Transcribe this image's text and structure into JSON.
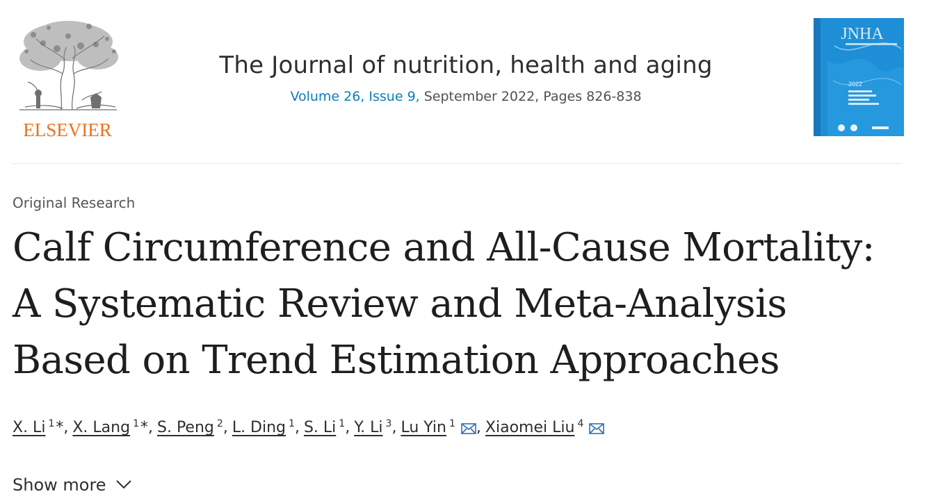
{
  "header": {
    "publisher": "ELSEVIER",
    "journal_title": "The Journal of nutrition, health and aging",
    "issue_volume": "Volume 26, Issue 9,",
    "issue_rest": " September 2022, Pages 826-838",
    "cover_title": "JNHA",
    "cover_year": "2022"
  },
  "article": {
    "type": "Original Research",
    "title_lines": [
      "Calf Circumference and All-Cause Mortality:",
      "A Systematic Review and Meta-Analysis",
      "Based on Trend Estimation Approaches"
    ]
  },
  "authors": [
    {
      "name": "X. Li",
      "aff": "1",
      "star": "*",
      "mail": false
    },
    {
      "name": "X. Lang",
      "aff": "1",
      "star": "*",
      "mail": false
    },
    {
      "name": "S. Peng",
      "aff": "2",
      "star": "",
      "mail": false
    },
    {
      "name": "L. Ding",
      "aff": "1",
      "star": "",
      "mail": false
    },
    {
      "name": "S. Li",
      "aff": "1",
      "star": "",
      "mail": false
    },
    {
      "name": "Y. Li",
      "aff": "3",
      "star": "",
      "mail": false
    },
    {
      "name": "Lu Yin",
      "aff": "1",
      "star": "",
      "mail": true
    },
    {
      "name": "Xiaomei Liu",
      "aff": "4",
      "star": "",
      "mail": true
    }
  ],
  "show_more_label": "Show more",
  "colors": {
    "publisher_orange": "#e9711c",
    "cover_blue": "#1e8fd6",
    "link_blue": "#0c7dbb",
    "text_dark": "#1e1e1e"
  },
  "icons": [
    "elsevier-tree-logo",
    "journal-cover",
    "envelope-icon",
    "chevron-down-icon"
  ]
}
